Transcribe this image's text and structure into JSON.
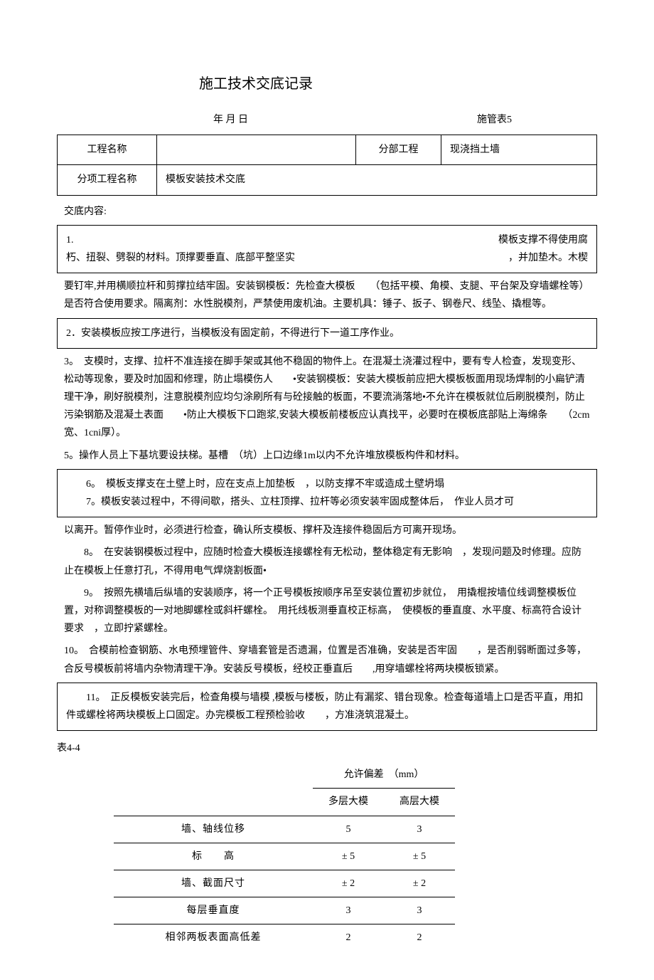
{
  "title": "施工技术交底记录",
  "date_label": "年 月 日",
  "form_no": "施管表5",
  "header": {
    "project_name_label": "工程名称",
    "project_name_value": "",
    "subpart_label": "分部工程",
    "subpart_value": "现浇挡土墙",
    "item_name_label": "分项工程名称",
    "item_name_value": "模板安装技术交底"
  },
  "content_label": "交底内容:",
  "sections": {
    "p1a": "1.",
    "p1b": "模板支撑不得使用腐",
    "p1c": "朽、扭裂、劈裂的材料。顶撑要垂直、底部平整坚实",
    "p1d": "，并加垫木。木楔",
    "p1e": "要钉牢,并用横顺拉杆和剪撑拉结牢固。安装钢模板：先检查大模板　　（包括平模、角模、支腿、平台架及穿墙螺栓等）是否符合使用要求。隔离剂：水性脱模剂，严禁使用废机油。主要机具：锤子、扳子、钢卷尺、线坠、撬棍等。",
    "p2": "2．安装模板应按工序进行，当模板没有固定前，不得进行下一道工序作业。",
    "p3": "3。　支模时，支撑、拉杆不准连接在脚手架或其他不稳固的物件上。在混凝土浇灌过程中，要有专人检查，发现变形、松动等现象，要及时加固和修理，防止塌模伤人　　•安装钢模板：安装大模板前应把大模板板面用现场焊制的小扁铲清理干净，刷好脱模剂，注意脱模剂应均匀涂刷所有与砼接触的板面，不要流淌落地•不允许在模板就位后刷脱模剂，防止污染钢筋及混凝土表面　　•防止大模板下口跑浆,安装大模板前楼板应认真找平，必要时在模板底部贴上海绵条　　（2cm宽、1cni厚）。",
    "p5": "5。操作人员上下基坑要设扶梯。基槽　（坑）上口边缘1m以内不允许堆放模板构件和材料。",
    "p6": "6。　模板支撑支在土壁上时，应在支点上加垫板　，以防支撑不牢或造成土壁坍塌",
    "p7": "7。模板安装过程中，不得间歇，搭头、立柱顶撑、拉杆等必须安装牢固成整体后，　作业人员才可",
    "p7b": "以离开。暂停作业时，必须进行检查，确认所支模板、撑杆及连接件稳固后方可离开现场。",
    "p8": "8。　在安装钢模板过程中，应随时检查大模板连接螺栓有无松动，整体稳定有无影响　，发现问题及时修理。应防止在模板上任意打孔，不得用电气焊烧割板面•",
    "p9": "9。　按照先横墙后纵墙的安装顺序，将一个正号模板按顺序吊至安装位置初步就位，　用撬棍按墙位线调整模板位置，对称调整模板的一对地脚螺栓或斜杆螺栓。　用托线板测垂直校正标高，　使模板的垂直度、水平度、标高符合设计要求　，立即拧紧螺栓。",
    "p10": "10。　合模前检查钢筋、水电预埋管件、穿墙套管是否遗漏，位置是否准确，安装是否牢固　　，是否削弱断面过多等，合反号模板前将墙内杂物清理干净。安装反号模板，经校正垂直后　　,用穿墙螺栓将两块模板锁紧。",
    "p11": "11。　正反模板安装完后，检查角模与墙模 ,模板与楼板，防止有漏浆、错台现象。检查每道墙上口是否平直，用扣件或螺栓将两块模板上口固定。办完模板工程预检验收　　，方准浇筑混凝土。"
  },
  "spec_table": {
    "caption": "表4-4",
    "header_top": "允许偏差　（mm）",
    "col1": "多层大模",
    "col2": "高层大模",
    "rows": [
      {
        "label": "墙、轴线位移",
        "v1": "5",
        "v2": "3"
      },
      {
        "label": "标　　高",
        "v1": "± 5",
        "v2": "± 5"
      },
      {
        "label": "墙、截面尺寸",
        "v1": "± 2",
        "v2": "± 2"
      },
      {
        "label": "每层垂直度",
        "v1": "3",
        "v2": "3"
      },
      {
        "label": "相邻两板表面高低差",
        "v1": "2",
        "v2": "2"
      }
    ]
  }
}
